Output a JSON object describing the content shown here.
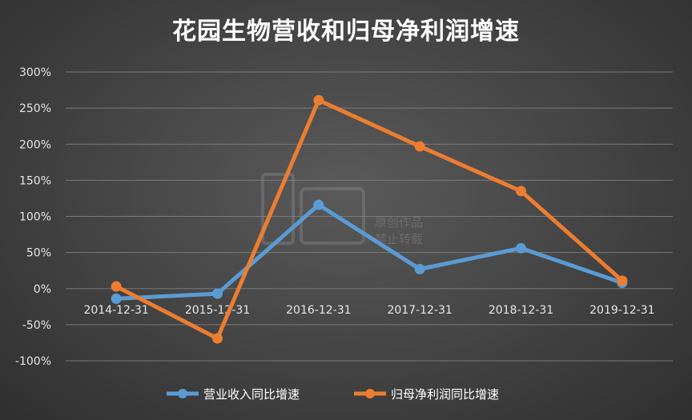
{
  "chart_data": {
    "type": "line",
    "title": "花园生物营收和归母净利润增速",
    "categories": [
      "2014-12-31",
      "2015-12-31",
      "2016-12-31",
      "2017-12-31",
      "2018-12-31",
      "2019-12-31"
    ],
    "series": [
      {
        "name": "营业收入同比增速",
        "color": "#5b9bd5",
        "values": [
          -14,
          -7,
          116,
          27,
          56,
          8
        ]
      },
      {
        "name": "归母净利润同比增速",
        "color": "#ed7d31",
        "values": [
          3,
          -69,
          261,
          197,
          135,
          11
        ]
      }
    ],
    "ylim": [
      -100,
      300
    ],
    "yticks": [
      "300%",
      "250%",
      "200%",
      "150%",
      "100%",
      "50%",
      "0%",
      "-50%",
      "-100%"
    ],
    "xlabel": "",
    "ylabel": "",
    "grid": true,
    "legend": "bottom"
  },
  "watermark": {
    "line1": "原创作品",
    "line2": "禁止转载"
  }
}
